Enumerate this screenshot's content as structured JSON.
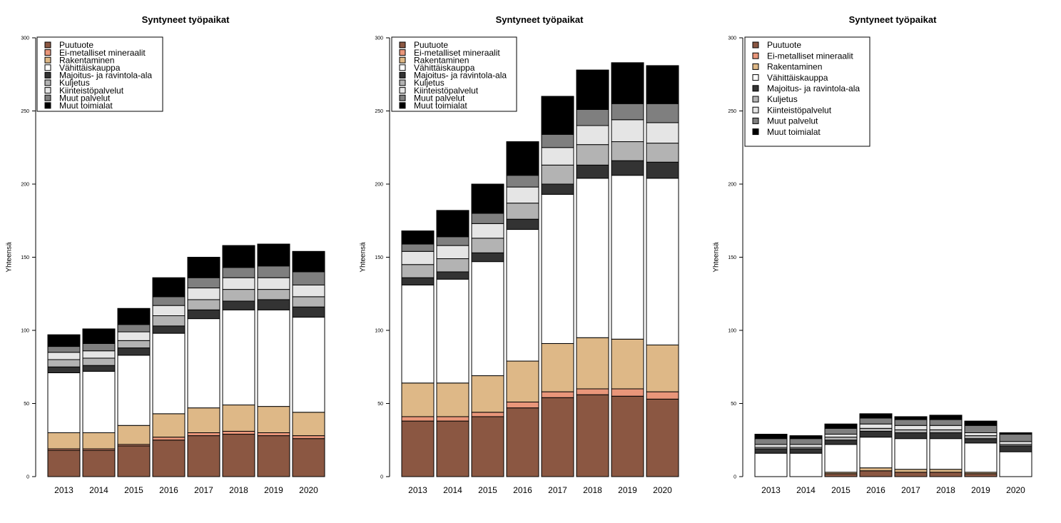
{
  "chart_data": [
    {
      "type": "bar",
      "stacked": true,
      "title": "Syntyneet työpaikat",
      "xlabel": "",
      "ylabel": "Yhteensä",
      "ylim": [
        0,
        300
      ],
      "yticks": [
        "0",
        "50",
        "100",
        "150",
        "200",
        "250",
        "300"
      ],
      "categories": [
        "2013",
        "2014",
        "2015",
        "2016",
        "2017",
        "2018",
        "2019",
        "2020"
      ],
      "legend_position": "top-left",
      "series": [
        {
          "name": "Puutuote",
          "color": "#8B5742",
          "values": [
            18,
            18,
            21,
            25,
            28,
            29,
            28,
            26
          ]
        },
        {
          "name": "Ei-metalliset mineraalit",
          "color": "#E9967A",
          "values": [
            1,
            1,
            1,
            2,
            2,
            2,
            2,
            2
          ]
        },
        {
          "name": "Rakentaminen",
          "color": "#DEB887",
          "values": [
            11,
            11,
            13,
            16,
            17,
            18,
            18,
            16
          ]
        },
        {
          "name": "Vähittäiskauppa",
          "color": "#FFFFFF",
          "values": [
            41,
            42,
            48,
            55,
            61,
            65,
            66,
            65
          ]
        },
        {
          "name": "Majoitus- ja ravintola-ala",
          "color": "#333333",
          "values": [
            4,
            4,
            5,
            5,
            6,
            6,
            7,
            7
          ]
        },
        {
          "name": "Kuljetus",
          "color": "#B3B3B3",
          "values": [
            5,
            5,
            5,
            7,
            7,
            8,
            7,
            7
          ]
        },
        {
          "name": "Kiinteistöpalvelut",
          "color": "#E5E5E5",
          "values": [
            5,
            5,
            6,
            7,
            8,
            8,
            8,
            8
          ]
        },
        {
          "name": "Muut palvelut",
          "color": "#7F7F7F",
          "values": [
            4,
            5,
            5,
            6,
            7,
            7,
            8,
            9
          ]
        },
        {
          "name": "Muut toimialat",
          "color": "#000000",
          "values": [
            8,
            10,
            11,
            13,
            14,
            15,
            15,
            14
          ]
        }
      ]
    },
    {
      "type": "bar",
      "stacked": true,
      "title": "Syntyneet työpaikat",
      "xlabel": "",
      "ylabel": "Yhteensä",
      "ylim": [
        0,
        300
      ],
      "yticks": [
        "0",
        "50",
        "100",
        "150",
        "200",
        "250",
        "300"
      ],
      "categories": [
        "2013",
        "2014",
        "2015",
        "2016",
        "2017",
        "2018",
        "2019",
        "2020"
      ],
      "legend_position": "top-left",
      "series": [
        {
          "name": "Puutuote",
          "color": "#8B5742",
          "values": [
            38,
            38,
            41,
            47,
            54,
            56,
            55,
            53
          ]
        },
        {
          "name": "Ei-metalliset mineraalit",
          "color": "#E9967A",
          "values": [
            3,
            3,
            3,
            4,
            4,
            4,
            5,
            5
          ]
        },
        {
          "name": "Rakentaminen",
          "color": "#DEB887",
          "values": [
            23,
            23,
            25,
            28,
            33,
            35,
            34,
            32
          ]
        },
        {
          "name": "Vähittäiskauppa",
          "color": "#FFFFFF",
          "values": [
            67,
            71,
            78,
            90,
            102,
            109,
            112,
            114
          ]
        },
        {
          "name": "Majoitus- ja ravintola-ala",
          "color": "#333333",
          "values": [
            5,
            5,
            6,
            7,
            7,
            9,
            10,
            11
          ]
        },
        {
          "name": "Kuljetus",
          "color": "#B3B3B3",
          "values": [
            9,
            9,
            10,
            11,
            13,
            14,
            13,
            13
          ]
        },
        {
          "name": "Kiinteistöpalvelut",
          "color": "#E5E5E5",
          "values": [
            9,
            9,
            10,
            11,
            12,
            13,
            15,
            14
          ]
        },
        {
          "name": "Muut palvelut",
          "color": "#7F7F7F",
          "values": [
            5,
            6,
            7,
            8,
            9,
            11,
            11,
            13
          ]
        },
        {
          "name": "Muut toimialat",
          "color": "#000000",
          "values": [
            9,
            18,
            20,
            23,
            26,
            27,
            28,
            26
          ]
        }
      ]
    },
    {
      "type": "bar",
      "stacked": true,
      "title": "Syntyneet työpaikat",
      "xlabel": "",
      "ylabel": "Yhteensä",
      "ylim": [
        0,
        300
      ],
      "yticks": [
        "0",
        "50",
        "100",
        "150",
        "200",
        "250",
        "300"
      ],
      "categories": [
        "2013",
        "2014",
        "2015",
        "2016",
        "2017",
        "2018",
        "2019",
        "2020"
      ],
      "legend_position": "top-left",
      "series": [
        {
          "name": "Puutuote",
          "color": "#8B5742",
          "values": [
            0,
            0,
            2,
            4,
            3,
            3,
            2,
            0
          ]
        },
        {
          "name": "Ei-metalliset mineraalit",
          "color": "#E9967A",
          "values": [
            0,
            0,
            0,
            0,
            0,
            0,
            0,
            0
          ]
        },
        {
          "name": "Rakentaminen",
          "color": "#DEB887",
          "values": [
            0,
            0,
            1,
            2,
            2,
            2,
            1,
            0
          ]
        },
        {
          "name": "Vähittäiskauppa",
          "color": "#FFFFFF",
          "values": [
            16,
            16,
            19,
            21,
            21,
            21,
            20,
            17
          ]
        },
        {
          "name": "Majoitus- ja ravintola-ala",
          "color": "#333333",
          "values": [
            3,
            3,
            3,
            4,
            4,
            4,
            3,
            4
          ]
        },
        {
          "name": "Kuljetus",
          "color": "#B3B3B3",
          "values": [
            1,
            1,
            2,
            2,
            2,
            2,
            2,
            1
          ]
        },
        {
          "name": "Kiinteistöpalvelut",
          "color": "#E5E5E5",
          "values": [
            2,
            2,
            2,
            3,
            3,
            3,
            2,
            2
          ]
        },
        {
          "name": "Muut palvelut",
          "color": "#7F7F7F",
          "values": [
            4,
            4,
            4,
            4,
            4,
            4,
            5,
            5
          ]
        },
        {
          "name": "Muut toimialat",
          "color": "#000000",
          "values": [
            3,
            2,
            3,
            3,
            2,
            3,
            3,
            1
          ]
        }
      ]
    }
  ]
}
